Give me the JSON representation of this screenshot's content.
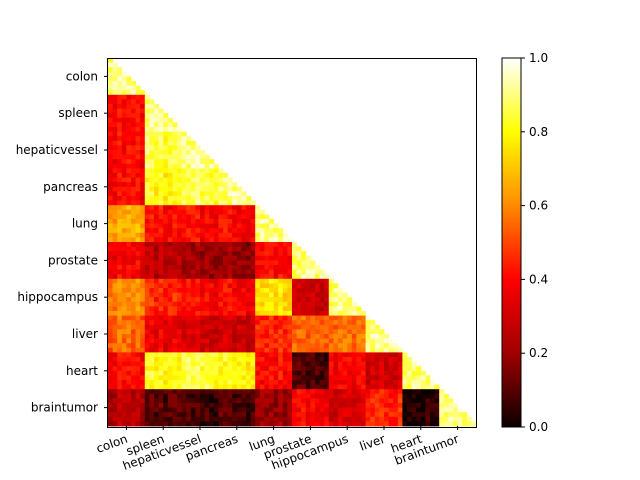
{
  "chart_data": {
    "type": "heatmap",
    "title": "",
    "xlabel": "",
    "ylabel": "",
    "categories": [
      "colon",
      "spleen",
      "hepaticvessel",
      "pancreas",
      "lung",
      "prostate",
      "hippocampus",
      "liver",
      "heart",
      "braintumor"
    ],
    "triangle": "lower (diagonal and below filled, upper blank)",
    "diagonal_value": 0.9,
    "block_values": [
      [
        0.9
      ],
      [
        0.4,
        0.9
      ],
      [
        0.4,
        0.85,
        0.9
      ],
      [
        0.4,
        0.8,
        0.85,
        0.9
      ],
      [
        0.65,
        0.4,
        0.4,
        0.4,
        0.9
      ],
      [
        0.38,
        0.25,
        0.2,
        0.2,
        0.4,
        0.9
      ],
      [
        0.6,
        0.45,
        0.4,
        0.4,
        0.75,
        0.3,
        0.9
      ],
      [
        0.55,
        0.35,
        0.3,
        0.3,
        0.45,
        0.55,
        0.55,
        0.9
      ],
      [
        0.4,
        0.8,
        0.85,
        0.8,
        0.4,
        0.1,
        0.38,
        0.3,
        0.9
      ],
      [
        0.25,
        0.1,
        0.07,
        0.1,
        0.2,
        0.4,
        0.3,
        0.45,
        0.03,
        0.9
      ]
    ],
    "colormap": "hot",
    "colorbar": {
      "range": [
        0.0,
        1.0
      ],
      "ticks": [
        "0.0",
        "0.2",
        "0.4",
        "0.6",
        "0.8",
        "1.0"
      ]
    },
    "colors": {
      "cmap_stops": [
        "#0b0000",
        "#a00000",
        "#ff0000",
        "#ff8a00",
        "#ffff00",
        "#ffffff"
      ]
    }
  }
}
